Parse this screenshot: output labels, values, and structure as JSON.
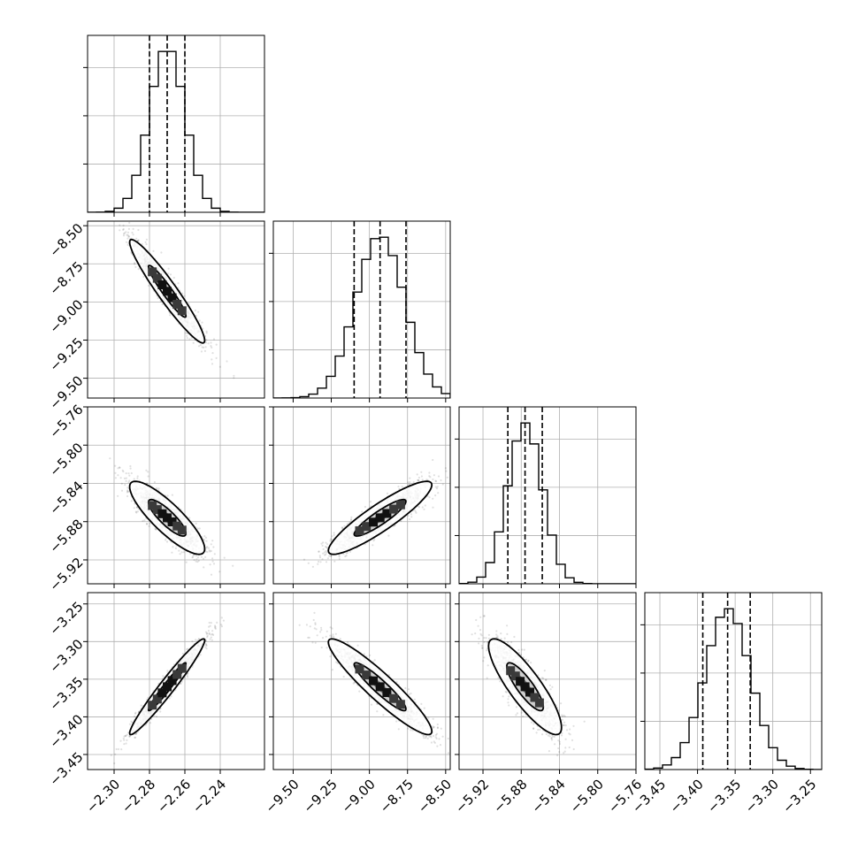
{
  "chart_data": {
    "type": "corner",
    "title": "",
    "parameters": [
      {
        "range": [
          -2.315,
          -2.215
        ],
        "ticks": [
          -2.3,
          -2.28,
          -2.26,
          -2.24
        ],
        "tick_labels": [
          "−2.30",
          "−2.28",
          "−2.26",
          "−2.24"
        ],
        "mean": -2.27,
        "sd": 0.01,
        "quantiles": [
          -2.28,
          -2.27,
          -2.26
        ]
      },
      {
        "range": [
          -9.63,
          -8.47
        ],
        "ticks": [
          -9.5,
          -9.25,
          -9.0,
          -8.75,
          -8.5
        ],
        "tick_labels": [
          "−9.50",
          "−9.25",
          "−9.00",
          "−8.75",
          "−8.50"
        ],
        "mean": -8.93,
        "sd": 0.16,
        "quantiles": [
          -9.1,
          -8.93,
          -8.76
        ]
      },
      {
        "range": [
          -5.945,
          -5.76
        ],
        "ticks": [
          -5.92,
          -5.88,
          -5.84,
          -5.8,
          -5.76
        ],
        "tick_labels": [
          "−5.92",
          "−5.88",
          "−5.84",
          "−5.80",
          "−5.76"
        ],
        "mean": -5.876,
        "sd": 0.018,
        "quantiles": [
          -5.894,
          -5.876,
          -5.858
        ]
      },
      {
        "range": [
          -3.47,
          -3.235
        ],
        "ticks": [
          -3.45,
          -3.4,
          -3.35,
          -3.3,
          -3.25
        ],
        "tick_labels": [
          "−3.45",
          "−3.40",
          "−3.35",
          "−3.30",
          "−3.25"
        ],
        "mean": -3.36,
        "sd": 0.03,
        "quantiles": [
          -3.393,
          -3.36,
          -3.33
        ]
      }
    ],
    "histogram_bins": 20,
    "correlations": [
      {
        "pair": [
          0,
          1
        ],
        "rho": -0.95
      },
      {
        "pair": [
          0,
          2
        ],
        "rho": -0.85
      },
      {
        "pair": [
          1,
          2
        ],
        "rho": 0.9
      },
      {
        "pair": [
          0,
          3
        ],
        "rho": 0.97
      },
      {
        "pair": [
          1,
          3
        ],
        "rho": -0.93
      },
      {
        "pair": [
          2,
          3
        ],
        "rho": -0.85
      }
    ],
    "contour_levels_sigma": [
      1.0,
      2.0
    ],
    "grid": true,
    "colors": {
      "points": "#000000",
      "contours": "#000000",
      "grid": "#b0b0b0"
    }
  }
}
